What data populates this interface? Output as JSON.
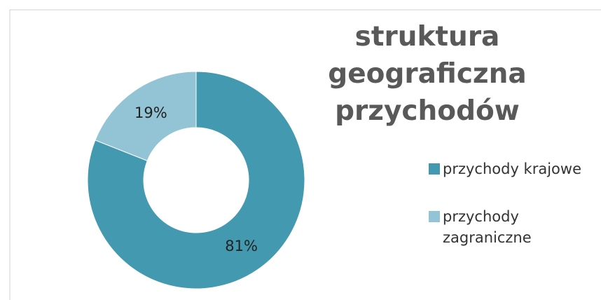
{
  "chart_data": {
    "type": "donut",
    "title": "struktura geograficzna przychodów",
    "categories": [
      "przychody krajowe",
      "przychody zagraniczne"
    ],
    "values": [
      81,
      19
    ],
    "value_labels": [
      "81%",
      "19%"
    ],
    "colors": [
      "#4299b0",
      "#92c4d6"
    ],
    "legend": "right"
  }
}
